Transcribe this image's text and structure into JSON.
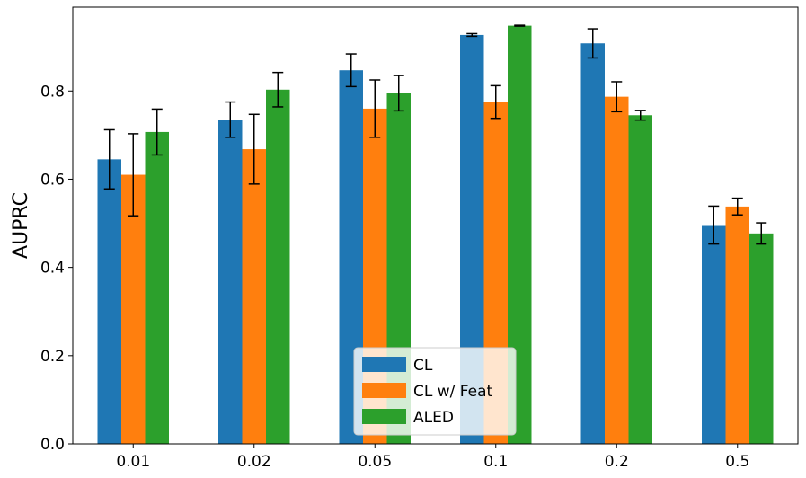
{
  "chart_data": {
    "type": "bar",
    "title": "",
    "xlabel": "",
    "ylabel": "AUPRC",
    "ylim": [
      0,
      0.99
    ],
    "yticks": [
      0.0,
      0.2,
      0.4,
      0.6,
      0.8
    ],
    "ytick_labels": [
      "0.0",
      "0.2",
      "0.4",
      "0.6",
      "0.8"
    ],
    "grid": false,
    "legend_position": "bottom-center",
    "categories": [
      "0.01",
      "0.02",
      "0.05",
      "0.1",
      "0.2",
      "0.5"
    ],
    "series": [
      {
        "name": "CL",
        "color": "#1f77b4",
        "values": [
          0.645,
          0.735,
          0.847,
          0.927,
          0.908,
          0.496
        ],
        "errors": [
          0.067,
          0.04,
          0.037,
          0.003,
          0.033,
          0.043
        ]
      },
      {
        "name": "CL w/ Feat",
        "color": "#ff7f0e",
        "values": [
          0.61,
          0.668,
          0.76,
          0.775,
          0.787,
          0.538
        ],
        "errors": [
          0.093,
          0.079,
          0.065,
          0.037,
          0.034,
          0.019
        ]
      },
      {
        "name": "ALED",
        "color": "#2ca02c",
        "values": [
          0.707,
          0.803,
          0.795,
          0.948,
          0.745,
          0.477
        ],
        "errors": [
          0.052,
          0.039,
          0.04,
          0.001,
          0.011,
          0.024
        ]
      }
    ]
  }
}
